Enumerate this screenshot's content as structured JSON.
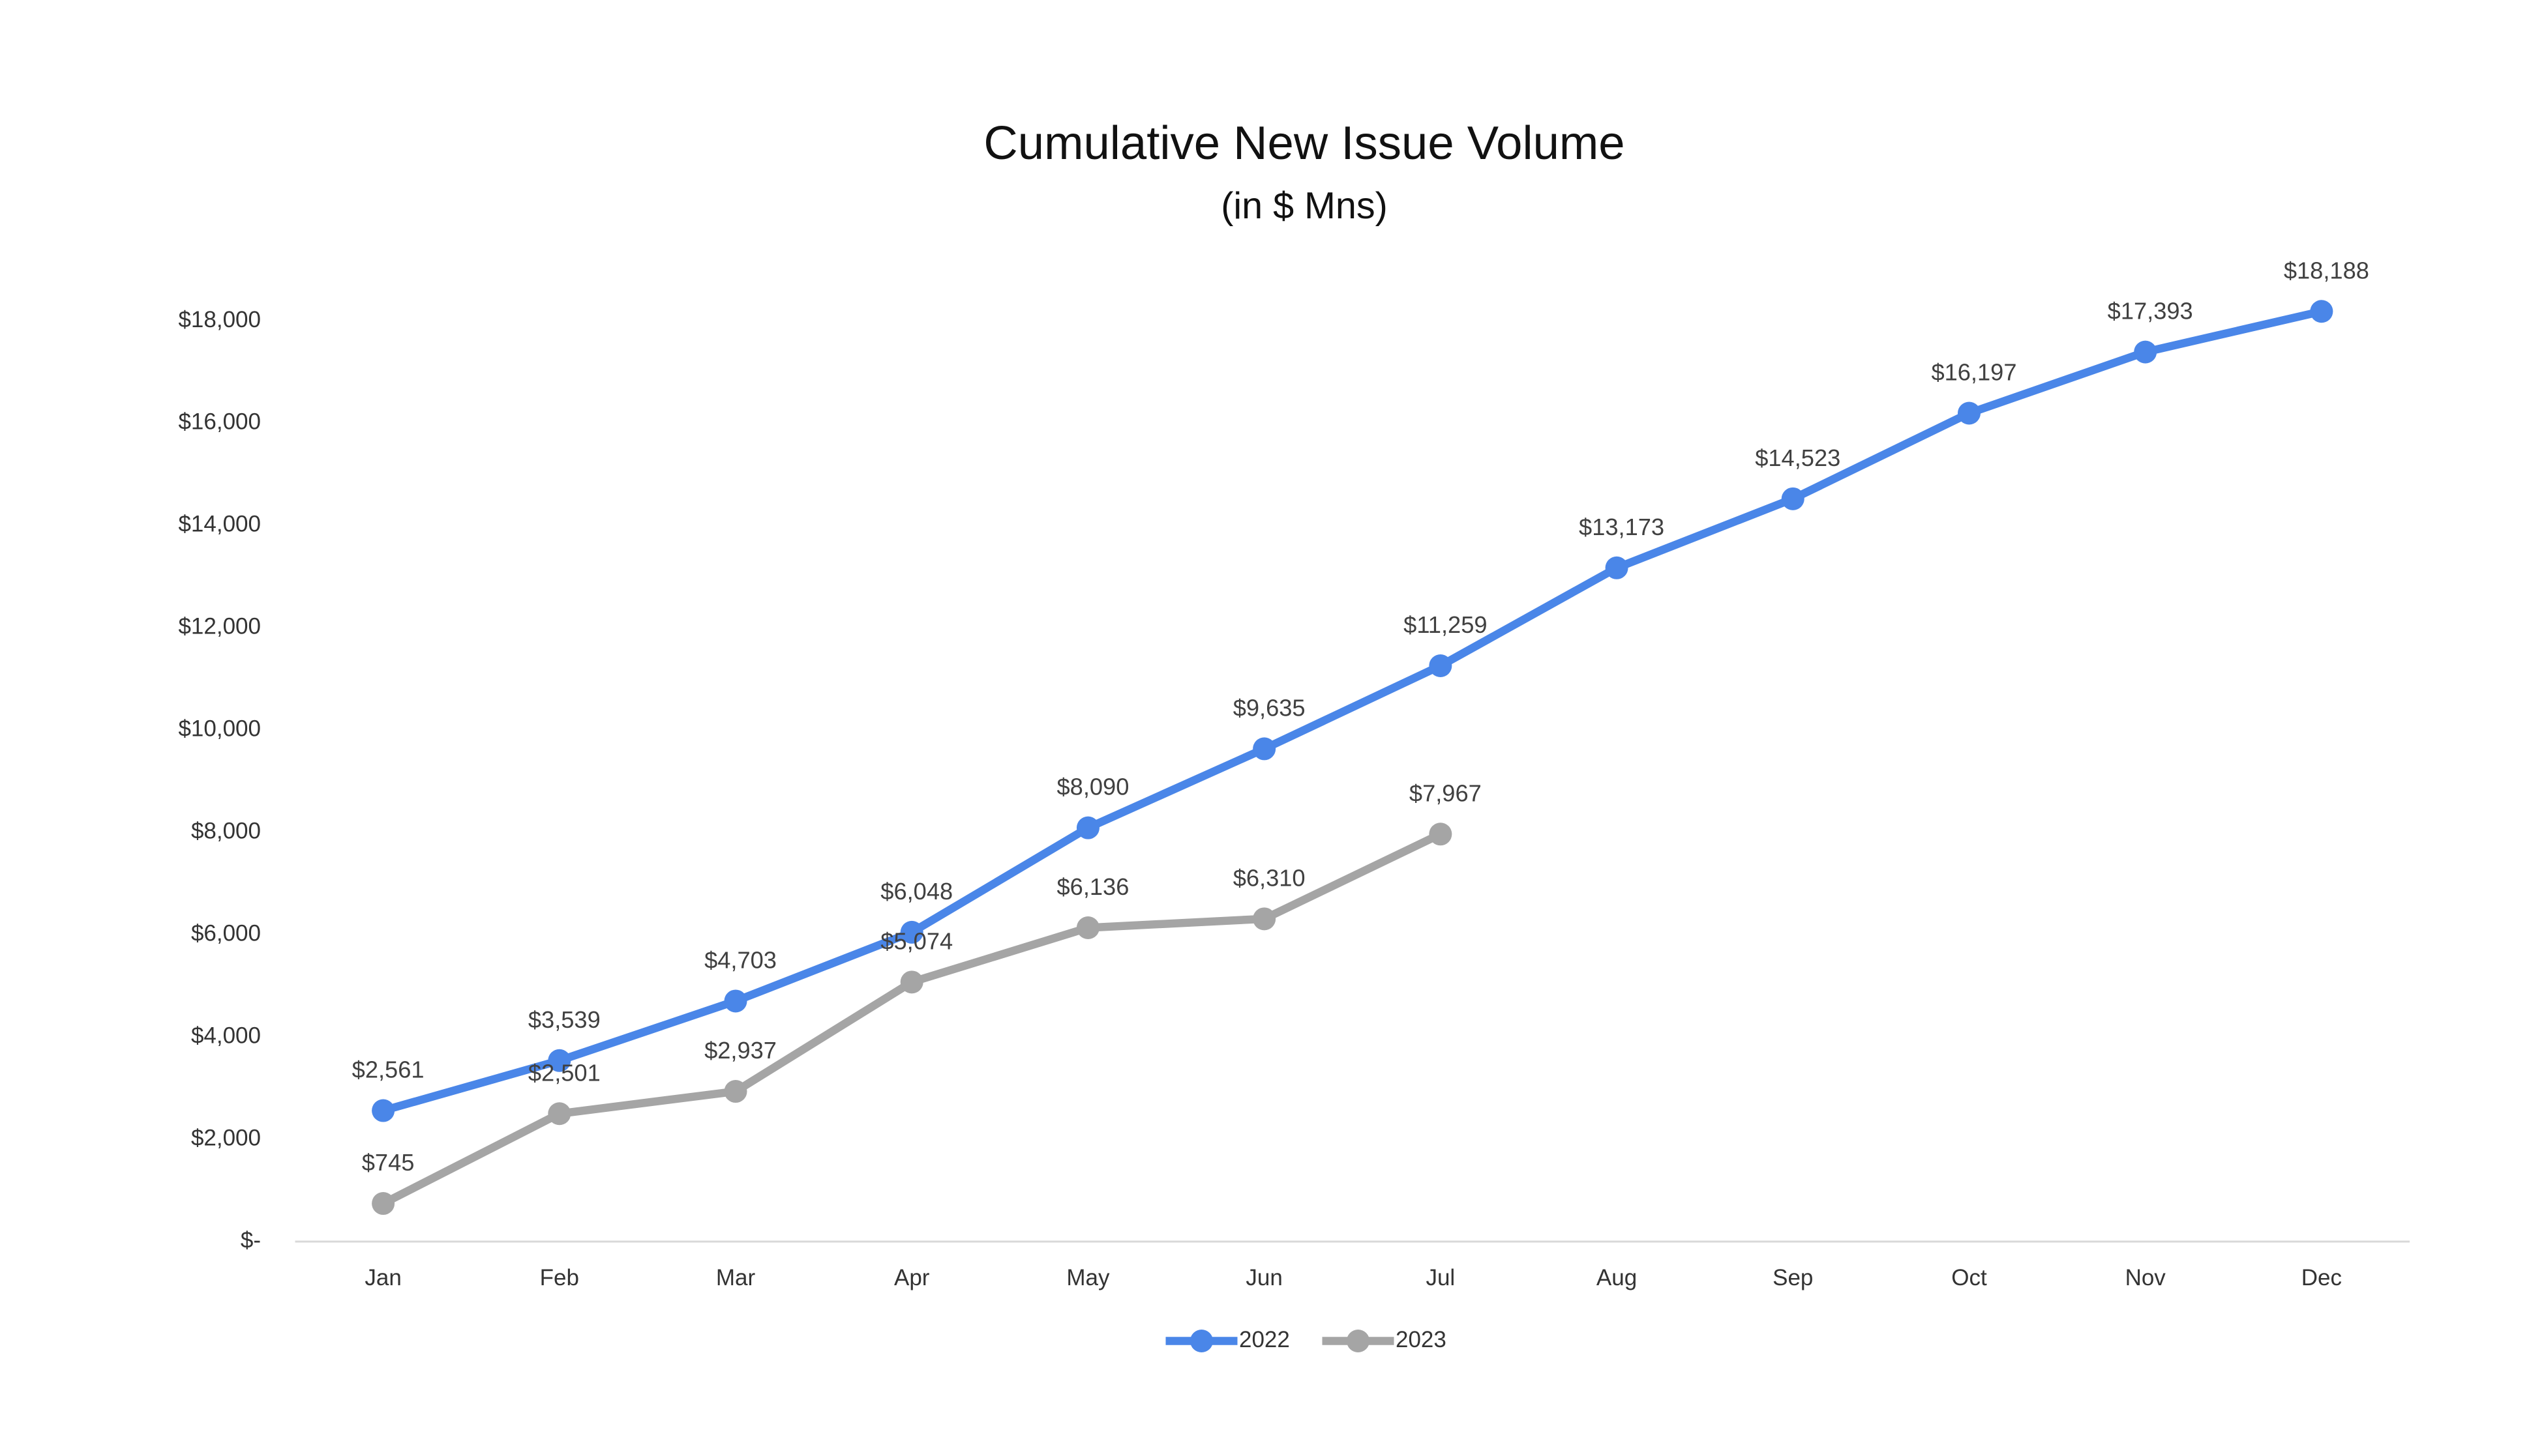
{
  "chart_data": {
    "type": "line",
    "title": "Cumulative New Issue Volume",
    "subtitle": "(in $ Mns)",
    "categories": [
      "Jan",
      "Feb",
      "Mar",
      "Apr",
      "May",
      "Jun",
      "Jul",
      "Aug",
      "Sep",
      "Oct",
      "Nov",
      "Dec"
    ],
    "series": [
      {
        "name": "2022",
        "color": "#4a86e8",
        "values": [
          2561,
          3539,
          4703,
          6048,
          8090,
          9635,
          11259,
          13173,
          14523,
          16197,
          17393,
          18188
        ],
        "value_labels": [
          "$2,561",
          "$3,539",
          "$4,703",
          "$6,048",
          "$8,090",
          "$9,635",
          "$11,259",
          "$13,173",
          "$14,523",
          "$16,197",
          "$17,393",
          "$18,188"
        ]
      },
      {
        "name": "2023",
        "color": "#a5a5a5",
        "values": [
          745,
          2501,
          2937,
          5074,
          6136,
          6310,
          7967,
          null,
          null,
          null,
          null,
          null
        ],
        "value_labels": [
          "$745",
          "$2,501",
          "$2,937",
          "$5,074",
          "$6,136",
          "$6,310",
          "$7,967",
          null,
          null,
          null,
          null,
          null
        ]
      }
    ],
    "ylim": [
      0,
      18000
    ],
    "yticks": [
      {
        "value": 0,
        "label": "$-"
      },
      {
        "value": 2000,
        "label": "$2,000"
      },
      {
        "value": 4000,
        "label": "$4,000"
      },
      {
        "value": 6000,
        "label": "$6,000"
      },
      {
        "value": 8000,
        "label": "$8,000"
      },
      {
        "value": 10000,
        "label": "$10,000"
      },
      {
        "value": 12000,
        "label": "$12,000"
      },
      {
        "value": 14000,
        "label": "$14,000"
      },
      {
        "value": 16000,
        "label": "$16,000"
      },
      {
        "value": 18000,
        "label": "$18,000"
      }
    ],
    "grid": false,
    "legend": "bottom"
  }
}
